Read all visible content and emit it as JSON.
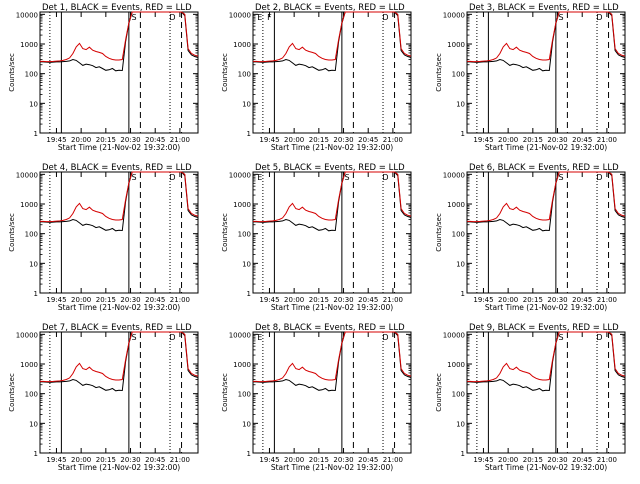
{
  "colors": {
    "events": "#000000",
    "lld": "#d40000",
    "axis": "#000000"
  },
  "chart_data": [
    {
      "type": "line",
      "title": "Det 1, BLACK = Events, RED = LLD",
      "xlabel": "Start Time (21-Nov-02 19:32:00)",
      "ylabel": "Counts/sec",
      "yscale": "log",
      "ylim": [
        1,
        12000
      ],
      "xlim_minutes_label": "19:35 to 21:11",
      "yticks": [
        "1",
        "10",
        "100",
        "1000",
        "10000"
      ],
      "xticks": [
        "19:45",
        "20:00",
        "20:15",
        "20:30",
        "20:45",
        "21:00"
      ],
      "markers": [
        {
          "time": "20:30",
          "label": "S"
        },
        {
          "time": "20:53",
          "label": "D"
        }
      ],
      "series": [
        {
          "name": "Events",
          "color": "#000000"
        },
        {
          "name": "LLD",
          "color": "#d40000"
        }
      ]
    },
    {
      "type": "line",
      "title": "Det 2, BLACK = Events, RED = LLD",
      "xlabel": "Start Time (21-Nov-02 19:32:00)",
      "ylabel": "Counts/sec",
      "yscale": "log",
      "ylim": [
        1,
        12000
      ],
      "yticks": [
        "1",
        "10",
        "100",
        "1000",
        "10000"
      ],
      "xticks": [
        "19:45",
        "20:00",
        "20:15",
        "20:30",
        "20:45",
        "21:00"
      ],
      "markers": [
        {
          "time": "19:37",
          "label": "E"
        },
        {
          "time": "19:43",
          "label": "F"
        },
        {
          "time": "20:53",
          "label": "D"
        }
      ],
      "series": [
        {
          "name": "Events",
          "color": "#000000"
        },
        {
          "name": "LLD",
          "color": "#d40000"
        }
      ]
    },
    {
      "type": "line",
      "title": "Det 3, BLACK = Events, RED = LLD",
      "xlabel": "Start Time (21-Nov-02 19:32:00)",
      "ylabel": "Counts/sec",
      "yscale": "log",
      "ylim": [
        1,
        12000
      ],
      "yticks": [
        "1",
        "10",
        "100",
        "1000",
        "10000"
      ],
      "xticks": [
        "19:45",
        "20:00",
        "20:15",
        "20:30",
        "20:45",
        "21:00"
      ],
      "markers": [
        {
          "time": "20:30",
          "label": "S"
        },
        {
          "time": "20:53",
          "label": "D"
        }
      ],
      "series": [
        {
          "name": "Events",
          "color": "#000000"
        },
        {
          "name": "LLD",
          "color": "#d40000"
        }
      ]
    },
    {
      "type": "line",
      "title": "Det 4, BLACK = Events, RED = LLD",
      "xlabel": "Start Time (21-Nov-02 19:32:00)",
      "ylabel": "Counts/sec",
      "yscale": "log",
      "ylim": [
        1,
        12000
      ],
      "yticks": [
        "1",
        "10",
        "100",
        "1000",
        "10000"
      ],
      "xticks": [
        "19:45",
        "20:00",
        "20:15",
        "20:30",
        "20:45",
        "21:00"
      ],
      "markers": [
        {
          "time": "20:30",
          "label": "S"
        },
        {
          "time": "20:53",
          "label": "D"
        }
      ],
      "series": [
        {
          "name": "Events",
          "color": "#000000"
        },
        {
          "name": "LLD",
          "color": "#d40000"
        }
      ]
    },
    {
      "type": "line",
      "title": "Det 5, BLACK = Events, RED = LLD",
      "xlabel": "Start Time (21-Nov-02 19:32:00)",
      "ylabel": "Counts/sec",
      "yscale": "log",
      "ylim": [
        1,
        12000
      ],
      "yticks": [
        "1",
        "10",
        "100",
        "1000",
        "10000"
      ],
      "xticks": [
        "19:45",
        "20:00",
        "20:15",
        "20:30",
        "20:45",
        "21:00"
      ],
      "markers": [
        {
          "time": "19:37",
          "label": "E"
        },
        {
          "time": "20:30",
          "label": "S"
        },
        {
          "time": "20:53",
          "label": "D"
        }
      ],
      "series": [
        {
          "name": "Events",
          "color": "#000000"
        },
        {
          "name": "LLD",
          "color": "#d40000"
        }
      ]
    },
    {
      "type": "line",
      "title": "Det 6, BLACK = Events, RED = LLD",
      "xlabel": "Start Time (21-Nov-02 19:32:00)",
      "ylabel": "Counts/sec",
      "yscale": "log",
      "ylim": [
        1,
        12000
      ],
      "yticks": [
        "1",
        "10",
        "100",
        "1000",
        "10000"
      ],
      "xticks": [
        "19:45",
        "20:00",
        "20:15",
        "20:30",
        "20:45",
        "21:00"
      ],
      "markers": [
        {
          "time": "20:30",
          "label": "S"
        },
        {
          "time": "20:53",
          "label": "D"
        }
      ],
      "series": [
        {
          "name": "Events",
          "color": "#000000"
        },
        {
          "name": "LLD",
          "color": "#d40000"
        }
      ]
    },
    {
      "type": "line",
      "title": "Det 7, BLACK = Events, RED = LLD",
      "xlabel": "Start Time (21-Nov-02 19:32:00)",
      "ylabel": "Counts/sec",
      "yscale": "log",
      "ylim": [
        1,
        12000
      ],
      "yticks": [
        "1",
        "10",
        "100",
        "1000",
        "10000"
      ],
      "xticks": [
        "19:45",
        "20:00",
        "20:15",
        "20:30",
        "20:45",
        "21:00"
      ],
      "markers": [
        {
          "time": "20:30",
          "label": "S"
        },
        {
          "time": "20:53",
          "label": "D"
        }
      ],
      "series": [
        {
          "name": "Events",
          "color": "#000000"
        },
        {
          "name": "LLD",
          "color": "#d40000"
        }
      ]
    },
    {
      "type": "line",
      "title": "Det 8, BLACK = Events, RED = LLD",
      "xlabel": "Start Time (21-Nov-02 19:32:00)",
      "ylabel": "Counts/sec",
      "yscale": "log",
      "ylim": [
        1,
        12000
      ],
      "yticks": [
        "1",
        "10",
        "100",
        "1000",
        "10000"
      ],
      "xticks": [
        "19:45",
        "20:00",
        "20:15",
        "20:30",
        "20:45",
        "21:00"
      ],
      "markers": [
        {
          "time": "19:37",
          "label": "E"
        },
        {
          "time": "20:53",
          "label": "D"
        }
      ],
      "series": [
        {
          "name": "Events",
          "color": "#000000"
        },
        {
          "name": "LLD",
          "color": "#d40000"
        }
      ]
    },
    {
      "type": "line",
      "title": "Det 9, BLACK = Events, RED = LLD",
      "xlabel": "Start Time (21-Nov-02 19:32:00)",
      "ylabel": "Counts/sec",
      "yscale": "log",
      "ylim": [
        1,
        12000
      ],
      "yticks": [
        "1",
        "10",
        "100",
        "1000",
        "10000"
      ],
      "xticks": [
        "19:45",
        "20:00",
        "20:15",
        "20:30",
        "20:45",
        "21:00"
      ],
      "markers": [
        {
          "time": "20:30",
          "label": "S"
        },
        {
          "time": "20:53",
          "label": "D"
        }
      ],
      "series": [
        {
          "name": "Events",
          "color": "#000000"
        },
        {
          "name": "LLD",
          "color": "#d40000"
        }
      ]
    }
  ],
  "profile": {
    "x_minutes": [
      0,
      2,
      4,
      6,
      8,
      10,
      12,
      14,
      16,
      18,
      20,
      22,
      24,
      26,
      28,
      30,
      32,
      34,
      36,
      38,
      40,
      42,
      44,
      46,
      48,
      50,
      52,
      54,
      56,
      58,
      60,
      62,
      64,
      66,
      68,
      70,
      72,
      74,
      76,
      78,
      80,
      82,
      84,
      86,
      88,
      90,
      92,
      94,
      96
    ],
    "events": [
      250,
      250,
      245,
      240,
      245,
      250,
      250,
      255,
      260,
      270,
      300,
      280,
      230,
      190,
      210,
      200,
      185,
      160,
      170,
      150,
      130,
      135,
      150,
      125,
      130,
      128,
      1200,
      5000,
      12000,
      12000,
      12000,
      12000,
      12000,
      12000,
      12000,
      12000,
      12000,
      12000,
      12000,
      12000,
      12000,
      12000,
      12000,
      12000,
      9000,
      600,
      430,
      380,
      350
    ],
    "lld": [
      260,
      260,
      255,
      255,
      260,
      265,
      270,
      280,
      300,
      340,
      480,
      800,
      1050,
      700,
      650,
      780,
      620,
      560,
      520,
      480,
      380,
      330,
      300,
      290,
      290,
      300,
      1400,
      5200,
      12000,
      12000,
      12000,
      12000,
      12000,
      12000,
      12000,
      12000,
      12000,
      12000,
      12000,
      12000,
      12000,
      12000,
      12000,
      12000,
      10000,
      700,
      480,
      420,
      390
    ]
  }
}
